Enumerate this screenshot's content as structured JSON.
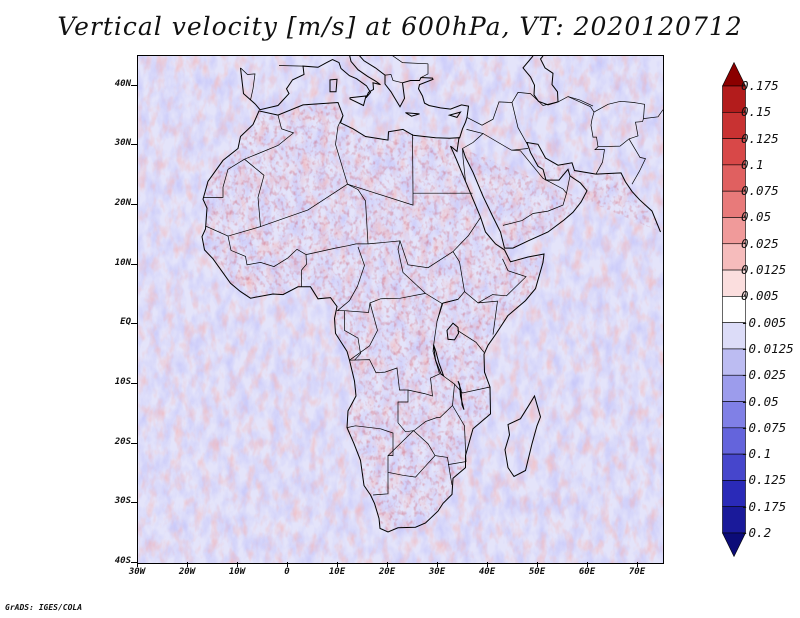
{
  "title": "Vertical velocity [m/s] at 600hPa, VT: 2020120712",
  "credit": "GrADS: IGES/COLA",
  "map": {
    "lat_ticks": [
      "40N",
      "30N",
      "20N",
      "10N",
      "EQ",
      "10S",
      "20S",
      "30S",
      "40S"
    ],
    "lon_ticks": [
      "30W",
      "20W",
      "10W",
      "0",
      "10E",
      "20E",
      "30E",
      "40E",
      "50E",
      "60E",
      "70E"
    ],
    "lon_range": [
      -30,
      75
    ],
    "lat_range": [
      -40,
      45
    ]
  },
  "colorbar": {
    "labels": [
      "0.175",
      "0.15",
      "0.125",
      "0.1",
      "0.075",
      "0.05",
      "0.025",
      "0.0125",
      "0.005",
      "-0.005",
      "-0.0125",
      "-0.025",
      "-0.05",
      "-0.075",
      "-0.1",
      "-0.125",
      "-0.175",
      "-0.2"
    ],
    "colors": [
      "#8b0000",
      "#b31c1c",
      "#c83232",
      "#d84848",
      "#e06060",
      "#e87a7a",
      "#f09a9a",
      "#f6bcbc",
      "#fbdede",
      "#ffffff",
      "#dcdcf8",
      "#bcbcf2",
      "#9c9cec",
      "#8080e6",
      "#6464dc",
      "#4646cc",
      "#2a2ab8",
      "#1a1a9a",
      "#0c0c78"
    ]
  }
}
